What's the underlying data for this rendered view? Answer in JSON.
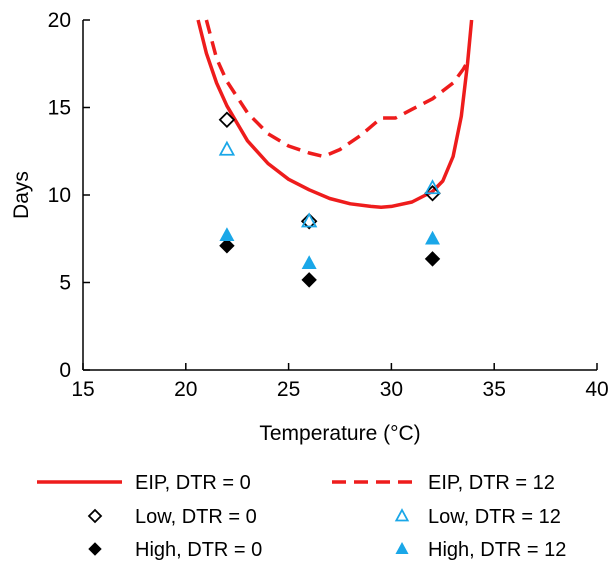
{
  "chart_data": {
    "type": "scatter",
    "xlabel": "Temperature (°C)",
    "ylabel": "Days",
    "xlim": [
      15,
      40
    ],
    "ylim": [
      0,
      20
    ],
    "x_ticks": [
      15,
      20,
      25,
      30,
      35,
      40
    ],
    "y_ticks": [
      0,
      5,
      10,
      15,
      20
    ],
    "grid": false,
    "legend_position": "bottom",
    "series": [
      {
        "name": "EIP, DTR = 0",
        "kind": "line",
        "style": "solid",
        "color": "#ee1c1c",
        "points": [
          [
            20.6,
            20.0
          ],
          [
            21.0,
            18.1
          ],
          [
            21.5,
            16.4
          ],
          [
            22.0,
            15.1
          ],
          [
            23.0,
            13.1
          ],
          [
            24.0,
            11.8
          ],
          [
            25.0,
            10.9
          ],
          [
            26.0,
            10.3
          ],
          [
            27.0,
            9.8
          ],
          [
            28.0,
            9.5
          ],
          [
            29.0,
            9.35
          ],
          [
            29.5,
            9.3
          ],
          [
            30.0,
            9.35
          ],
          [
            31.0,
            9.6
          ],
          [
            32.0,
            10.2
          ],
          [
            32.5,
            10.8
          ],
          [
            33.0,
            12.2
          ],
          [
            33.4,
            14.5
          ],
          [
            33.7,
            17.5
          ],
          [
            33.9,
            20.0
          ]
        ]
      },
      {
        "name": "EIP, DTR = 12",
        "kind": "line",
        "style": "dashed",
        "color": "#ee1c1c",
        "points": [
          [
            21.0,
            20.0
          ],
          [
            21.5,
            17.8
          ],
          [
            22.0,
            16.5
          ],
          [
            23.0,
            14.7
          ],
          [
            24.0,
            13.5
          ],
          [
            25.0,
            12.8
          ],
          [
            26.0,
            12.4
          ],
          [
            26.7,
            12.2
          ],
          [
            27.5,
            12.6
          ],
          [
            28.5,
            13.4
          ],
          [
            29.5,
            14.4
          ],
          [
            30.2,
            14.4
          ],
          [
            31.0,
            14.9
          ],
          [
            32.0,
            15.5
          ],
          [
            33.0,
            16.4
          ],
          [
            33.5,
            17.2
          ],
          [
            33.8,
            17.8
          ]
        ]
      },
      {
        "name": "Low, DTR = 0",
        "kind": "marker",
        "marker": "diamond-open",
        "color": "#000000",
        "points": [
          [
            22,
            14.3
          ],
          [
            26,
            8.5
          ],
          [
            32,
            10.1
          ]
        ]
      },
      {
        "name": "Low, DTR = 12",
        "kind": "marker",
        "marker": "triangle-open",
        "color": "#1aa7e8",
        "points": [
          [
            22,
            12.6
          ],
          [
            26,
            8.5
          ],
          [
            32,
            10.4
          ]
        ]
      },
      {
        "name": "High, DTR = 0",
        "kind": "marker",
        "marker": "diamond-filled",
        "color": "#000000",
        "points": [
          [
            22,
            7.1
          ],
          [
            26,
            5.15
          ],
          [
            32,
            6.35
          ]
        ]
      },
      {
        "name": "High, DTR = 12",
        "kind": "marker",
        "marker": "triangle-filled",
        "color": "#1aa7e8",
        "points": [
          [
            22,
            7.7
          ],
          [
            26,
            6.1
          ],
          [
            32,
            7.5
          ]
        ]
      }
    ]
  }
}
